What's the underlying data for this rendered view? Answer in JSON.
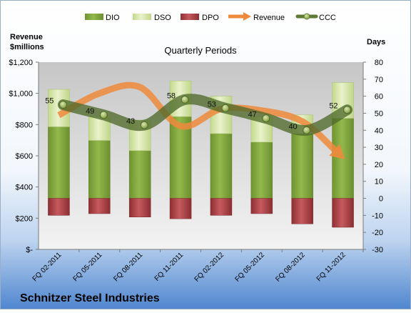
{
  "company": "Schnitzer Steel Industries",
  "chart_data": {
    "type": "bar",
    "title": "Quarterly Periods",
    "left_axis_title": [
      "Revenue",
      "$millions"
    ],
    "right_axis_title": "Days",
    "categories": [
      "FQ 02-2011",
      "FQ 05-2011",
      "FQ 08-2011",
      "FQ 11-2011",
      "FQ 02-2012",
      "FQ 05-2012",
      "FQ 08-2012",
      "FQ 11-2012"
    ],
    "left_axis": {
      "min": 0,
      "max": 1200,
      "step": 200,
      "tick_labels": [
        "$-",
        "$200",
        "$400",
        "$600",
        "$800",
        "$1,000",
        "$1,200"
      ]
    },
    "right_axis": {
      "min": -30,
      "max": 80,
      "step": 10,
      "tick_labels": [
        "-30",
        "-20",
        "-10",
        "0",
        "10",
        "20",
        "30",
        "40",
        "50",
        "60",
        "70",
        "80"
      ]
    },
    "series": [
      {
        "name": "DIO",
        "kind": "stacked-bar",
        "axis": "right",
        "color": "#7fa23a",
        "values": [
          42,
          34,
          28,
          48,
          38,
          33,
          38,
          47
        ]
      },
      {
        "name": "DSO",
        "kind": "stacked-bar",
        "axis": "right",
        "color": "#d6e6a8",
        "values": [
          22,
          14,
          18,
          21,
          22,
          15,
          11,
          21
        ]
      },
      {
        "name": "DPO",
        "kind": "negative-bar",
        "axis": "right",
        "color": "#b04a4e",
        "values": [
          -10,
          -9,
          -11,
          -12,
          -10,
          -9,
          -15,
          -17
        ]
      },
      {
        "name": "Revenue",
        "kind": "line",
        "axis": "left",
        "color": "#ee8a3c",
        "values": [
          860,
          1000,
          1040,
          790,
          900,
          890,
          820,
          590
        ]
      },
      {
        "name": "CCC",
        "kind": "line",
        "axis": "right",
        "color": "#5f7a34",
        "values": [
          55,
          49,
          43,
          58,
          53,
          47,
          40,
          52
        ],
        "labels": [
          "55",
          "49",
          "43",
          "58",
          "53",
          "47",
          "40",
          "52"
        ]
      }
    ],
    "legend_position": "top",
    "grid": false
  }
}
